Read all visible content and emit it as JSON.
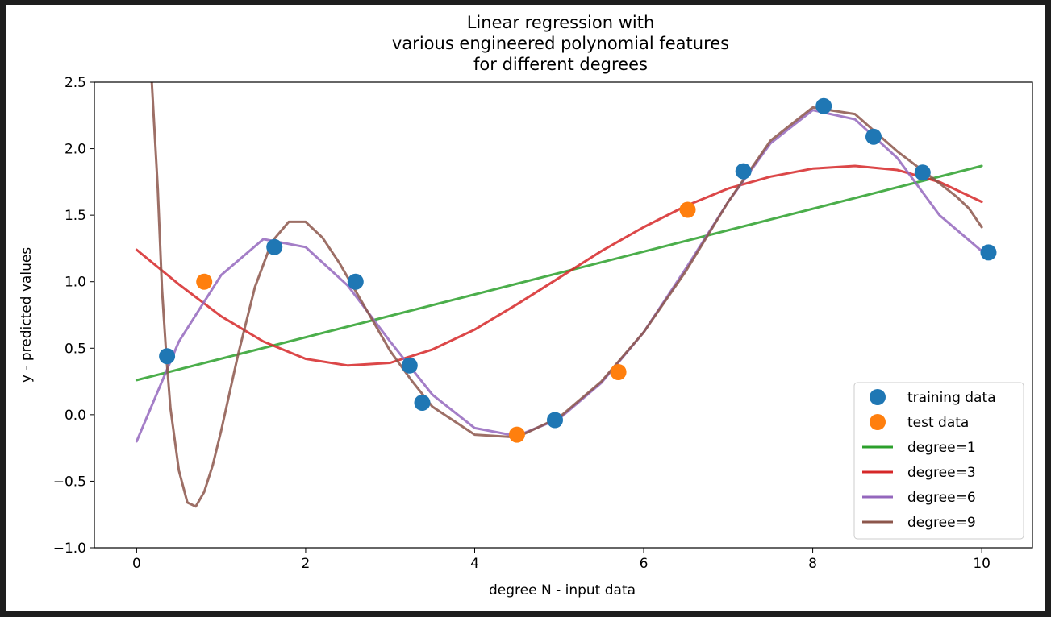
{
  "chart_data": {
    "type": "scatter",
    "title_lines": [
      "Linear regression with",
      "various engineered polynomial features",
      "for different degrees"
    ],
    "xlabel": "degree N - input data",
    "ylabel": "y - predicted values",
    "xlim": [
      -0.5,
      10.6
    ],
    "ylim": [
      -1.0,
      2.5
    ],
    "xticks": [
      0,
      2,
      4,
      6,
      8,
      10
    ],
    "xtick_labels": [
      "0",
      "2",
      "4",
      "6",
      "8",
      "10"
    ],
    "yticks": [
      -1.0,
      -0.5,
      0.0,
      0.5,
      1.0,
      1.5,
      2.0,
      2.5
    ],
    "ytick_labels": [
      "−1.0",
      "−0.5",
      "0.0",
      "0.5",
      "1.0",
      "1.5",
      "2.0",
      "2.5"
    ],
    "grid": false,
    "legend_position": "lower-right",
    "legend": [
      "training data",
      "test data",
      "degree=1",
      "degree=3",
      "degree=6",
      "degree=9"
    ],
    "training_data": {
      "name": "training data",
      "color": "#1f77b4",
      "x": [
        0.36,
        1.63,
        2.59,
        3.23,
        3.38,
        4.95,
        7.18,
        8.13,
        8.72,
        9.3,
        10.08
      ],
      "y": [
        0.44,
        1.26,
        1.0,
        0.37,
        0.09,
        -0.04,
        1.83,
        2.32,
        2.09,
        1.82,
        1.22
      ]
    },
    "test_data": {
      "name": "test data",
      "color": "#ff7f0e",
      "x": [
        0.8,
        4.5,
        5.7,
        6.52
      ],
      "y": [
        1.0,
        -0.15,
        0.32,
        1.54
      ]
    },
    "series": [
      {
        "name": "degree=1",
        "color": "#2ca02c",
        "x": [
          0,
          10
        ],
        "y": [
          0.26,
          1.87
        ]
      },
      {
        "name": "degree=3",
        "color": "#d62728",
        "x": [
          0,
          0.5,
          1,
          1.5,
          2,
          2.5,
          3,
          3.5,
          4,
          4.5,
          5,
          5.5,
          6,
          6.5,
          7,
          7.5,
          8,
          8.5,
          9,
          9.5,
          10
        ],
        "y": [
          1.24,
          0.98,
          0.74,
          0.55,
          0.42,
          0.37,
          0.39,
          0.49,
          0.64,
          0.83,
          1.03,
          1.23,
          1.41,
          1.57,
          1.7,
          1.79,
          1.85,
          1.87,
          1.84,
          1.75,
          1.6
        ]
      },
      {
        "name": "degree=6",
        "color": "#9467bd",
        "x": [
          0,
          0.5,
          1,
          1.5,
          2,
          2.5,
          3,
          3.5,
          4,
          4.5,
          5,
          5.5,
          6,
          6.5,
          7,
          7.5,
          8,
          8.5,
          9,
          9.5,
          10
        ],
        "y": [
          -0.2,
          0.55,
          1.05,
          1.32,
          1.26,
          0.97,
          0.55,
          0.15,
          -0.1,
          -0.16,
          -0.03,
          0.24,
          0.62,
          1.1,
          1.6,
          2.04,
          2.29,
          2.22,
          1.93,
          1.5,
          1.23
        ]
      },
      {
        "name": "degree=9",
        "color": "#8c564b",
        "x": [
          0.18,
          0.25,
          0.3,
          0.35,
          0.4,
          0.5,
          0.6,
          0.7,
          0.8,
          0.9,
          1.0,
          1.2,
          1.4,
          1.6,
          1.8,
          2.0,
          2.2,
          2.4,
          2.6,
          2.8,
          3.0,
          3.25,
          3.5,
          4.0,
          4.5,
          5.0,
          5.5,
          6.0,
          6.5,
          7.0,
          7.5,
          8.0,
          8.5,
          9.0,
          9.5,
          9.7,
          9.85,
          10.0
        ],
        "y": [
          2.5,
          1.7,
          0.95,
          0.45,
          0.05,
          -0.42,
          -0.66,
          -0.69,
          -0.58,
          -0.38,
          -0.12,
          0.45,
          0.96,
          1.3,
          1.45,
          1.45,
          1.33,
          1.14,
          0.92,
          0.7,
          0.48,
          0.26,
          0.06,
          -0.15,
          -0.17,
          -0.02,
          0.25,
          0.62,
          1.08,
          1.6,
          2.06,
          2.31,
          2.26,
          1.98,
          1.74,
          1.64,
          1.55,
          1.41
        ]
      }
    ]
  }
}
